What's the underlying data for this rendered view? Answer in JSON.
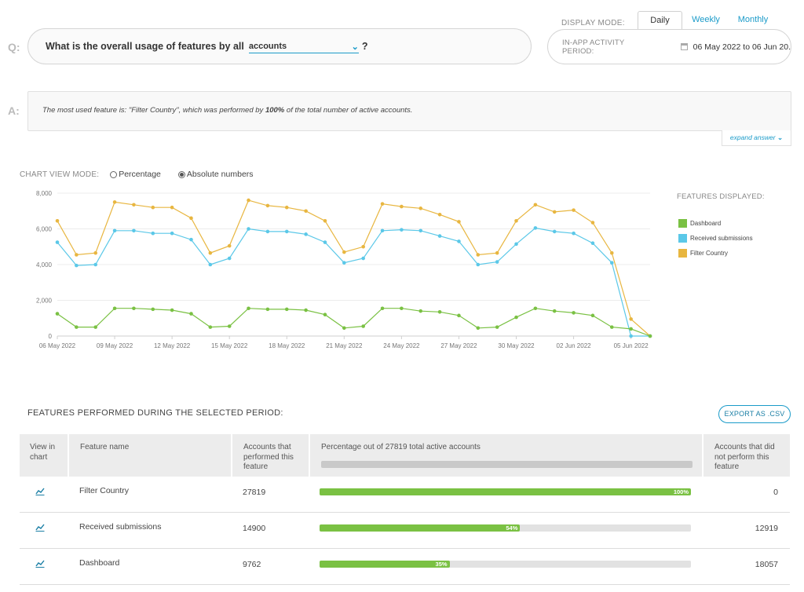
{
  "question": {
    "letter": "Q:",
    "prefix": "What is the overall usage of features by all",
    "select_value": "accounts",
    "suffix": "?"
  },
  "display_mode": {
    "label": "DISPLAY MODE:",
    "tabs": [
      "Daily",
      "Weekly",
      "Monthly"
    ],
    "active": "Daily"
  },
  "period": {
    "label": "IN-APP ACTIVITY PERIOD:",
    "value": "06 May 2022 to 06 Jun 20."
  },
  "answer": {
    "letter": "A:",
    "text_before": "The most used feature is: \"Filter Country\", which was performed by ",
    "text_bold": "100%",
    "text_after": " of the total number of active accounts.",
    "expand_label": "expand answer"
  },
  "chart_view_mode": {
    "label": "CHART VIEW MODE:",
    "options": [
      "Percentage",
      "Absolute numbers"
    ],
    "selected": "Absolute numbers"
  },
  "legend": {
    "title": "FEATURES DISPLAYED:",
    "items": [
      {
        "name": "Dashboard",
        "color": "#7ac143"
      },
      {
        "name": "Received submissions",
        "color": "#5bc8e8"
      },
      {
        "name": "Filter Country",
        "color": "#e8b640"
      }
    ]
  },
  "chart_data": {
    "type": "line",
    "y_ticks": [
      "0",
      "2,000",
      "4,000",
      "6,000",
      "8,000"
    ],
    "ylim": [
      0,
      8000
    ],
    "x_tick_labels": [
      "06 May 2022",
      "09 May 2022",
      "12 May 2022",
      "15 May 2022",
      "18 May 2022",
      "21 May 2022",
      "24 May 2022",
      "27 May 2022",
      "30 May 2022",
      "02 Jun 2022",
      "05 Jun 2022"
    ],
    "x_tick_every": 3,
    "n_points": 32,
    "grid": true,
    "series": [
      {
        "name": "Filter Country",
        "color": "#e8b640",
        "values": [
          6450,
          4550,
          4650,
          7500,
          7350,
          7200,
          7200,
          6600,
          4650,
          5050,
          7600,
          7300,
          7200,
          7000,
          6450,
          4700,
          5000,
          7400,
          7250,
          7150,
          6800,
          6400,
          4550,
          4650,
          6450,
          7350,
          6950,
          7050,
          6350,
          4650,
          950,
          0
        ]
      },
      {
        "name": "Received submissions",
        "color": "#5bc8e8",
        "values": [
          5250,
          3950,
          4000,
          5900,
          5900,
          5750,
          5750,
          5400,
          4000,
          4350,
          6000,
          5850,
          5850,
          5700,
          5250,
          4100,
          4350,
          5900,
          5950,
          5900,
          5600,
          5300,
          4000,
          4150,
          5150,
          6050,
          5850,
          5750,
          5200,
          4100,
          0,
          0
        ]
      },
      {
        "name": "Dashboard",
        "color": "#7ac143",
        "values": [
          1250,
          500,
          500,
          1550,
          1550,
          1500,
          1450,
          1250,
          500,
          550,
          1550,
          1500,
          1500,
          1450,
          1200,
          450,
          550,
          1550,
          1550,
          1400,
          1350,
          1150,
          450,
          500,
          1050,
          1550,
          1400,
          1300,
          1150,
          500,
          400,
          0
        ]
      }
    ]
  },
  "features": {
    "title": "FEATURES PERFORMED DURING THE SELECTED PERIOD:",
    "export_label": "EXPORT AS .CSV",
    "headers": {
      "view": "View in chart",
      "name": "Feature name",
      "count": "Accounts that performed this feature",
      "pct": "Percentage out of 27819 total active accounts",
      "not": "Accounts that did not perform this feature"
    },
    "rows": [
      {
        "name": "Filter Country",
        "count": "27819",
        "pct": 100,
        "pct_label": "100%",
        "not": "0"
      },
      {
        "name": "Received submissions",
        "count": "14900",
        "pct": 54,
        "pct_label": "54%",
        "not": "12919"
      },
      {
        "name": "Dashboard",
        "count": "9762",
        "pct": 35,
        "pct_label": "35%",
        "not": "18057"
      }
    ]
  }
}
